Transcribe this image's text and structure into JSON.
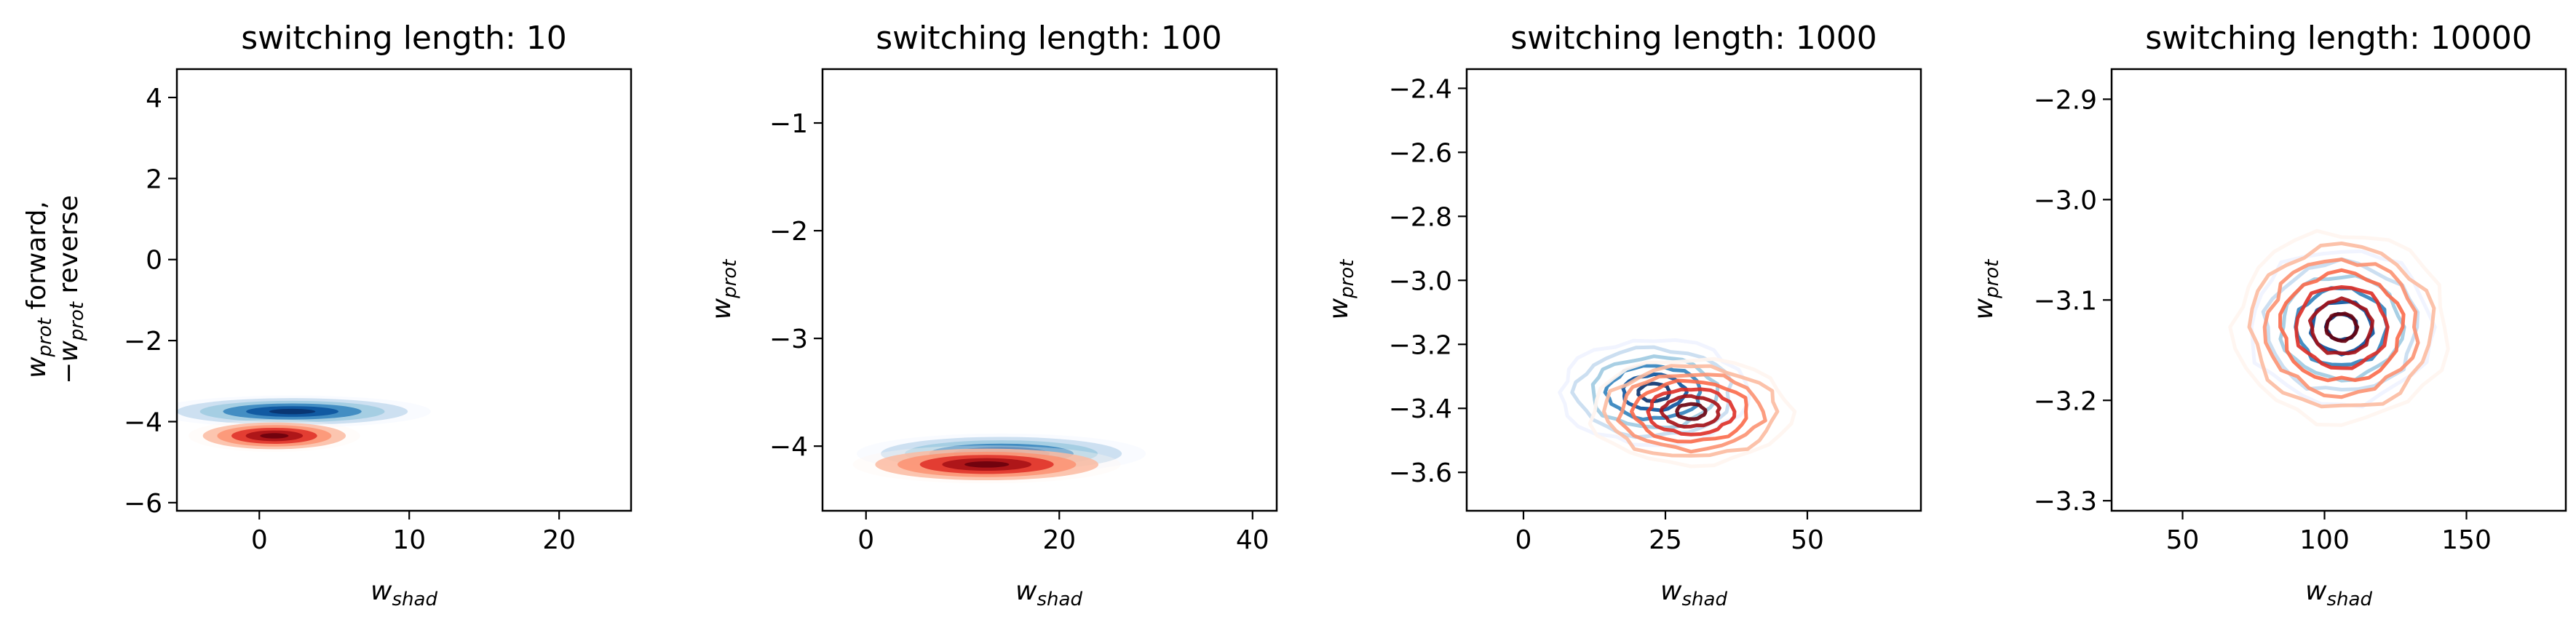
{
  "colors": {
    "forward_colormap": "Blues",
    "reverse_colormap": "Reds",
    "blues": [
      "#eff3ff",
      "#c6dbef",
      "#9ecae1",
      "#6baed6",
      "#3182bd",
      "#08519c",
      "#08306b"
    ],
    "reds": [
      "#fff5f0",
      "#fcbba1",
      "#fc9272",
      "#fb6a4a",
      "#de2d26",
      "#a50f15",
      "#67000d"
    ]
  },
  "chart_data": [
    {
      "type": "contour",
      "title": "switching length: 10",
      "xlabel": {
        "main": "w",
        "sub": "shad"
      },
      "ylabel": {
        "line1_main": "w",
        "line1_sub": "prot",
        "line1_text": " forward,",
        "line2_prefix": "−",
        "line2_main": "w",
        "line2_sub": "prot",
        "line2_text": " reverse"
      },
      "xlim": [
        -5.5,
        24.8
      ],
      "ylim": [
        -6.2,
        4.7
      ],
      "xticks": [
        0,
        10,
        20
      ],
      "xtick_labels": [
        "0",
        "10",
        "20"
      ],
      "yticks": [
        -6,
        -4,
        -2,
        0,
        2,
        4
      ],
      "ytick_labels": [
        "−6",
        "−4",
        "−2",
        "0",
        "2",
        "4"
      ],
      "filled": true,
      "series": [
        {
          "name": "forward",
          "colormap": "Blues",
          "center": [
            2.2,
            -3.75
          ],
          "spread": [
            4.2,
            0.18
          ],
          "levels": 6
        },
        {
          "name": "reverse",
          "colormap": "Reds",
          "center": [
            1.0,
            -4.35
          ],
          "spread": [
            2.6,
            0.18
          ],
          "levels": 6
        }
      ]
    },
    {
      "type": "contour",
      "title": "switching length: 100",
      "xlabel": {
        "main": "w",
        "sub": "shad"
      },
      "ylabel": {
        "line1_main": "w",
        "line1_sub": "prot"
      },
      "xlim": [
        -4.5,
        42.5
      ],
      "ylim": [
        -4.6,
        -0.5
      ],
      "xticks": [
        0,
        20,
        40
      ],
      "xtick_labels": [
        "0",
        "20",
        "40"
      ],
      "yticks": [
        -4,
        -3,
        -2,
        -1
      ],
      "ytick_labels": [
        "−4",
        "−3",
        "−2",
        "−1"
      ],
      "filled": true,
      "series": [
        {
          "name": "forward",
          "colormap": "Blues",
          "center": [
            14.0,
            -4.07
          ],
          "spread": [
            6.8,
            0.085
          ],
          "levels": 6
        },
        {
          "name": "reverse",
          "colormap": "Reds",
          "center": [
            12.5,
            -4.17
          ],
          "spread": [
            6.3,
            0.08
          ],
          "levels": 6
        }
      ]
    },
    {
      "type": "contour",
      "title": "switching length: 1000",
      "xlabel": {
        "main": "w",
        "sub": "shad"
      },
      "ylabel": {
        "line1_main": "w",
        "line1_sub": "prot"
      },
      "xlim": [
        -10,
        70
      ],
      "ylim": [
        -3.72,
        -2.34
      ],
      "xticks": [
        0,
        25,
        50
      ],
      "xtick_labels": [
        "0",
        "25",
        "50"
      ],
      "yticks": [
        -3.6,
        -3.4,
        -3.2,
        -3.0,
        -2.8,
        -2.6,
        -2.4
      ],
      "ytick_labels": [
        "−3.6",
        "−3.4",
        "−3.2",
        "−3.0",
        "−2.8",
        "−2.6",
        "−2.4"
      ],
      "filled": false,
      "series": [
        {
          "name": "forward",
          "colormap": "Blues",
          "center": [
            23.0,
            -3.35
          ],
          "spread": [
            7.5,
            0.075
          ],
          "levels": 6
        },
        {
          "name": "reverse",
          "colormap": "Reds",
          "center": [
            29.5,
            -3.41
          ],
          "spread": [
            8.0,
            0.075
          ],
          "levels": 7
        }
      ]
    },
    {
      "type": "contour",
      "title": "switching length: 10000",
      "xlabel": {
        "main": "w",
        "sub": "shad"
      },
      "ylabel": {
        "line1_main": "w",
        "line1_sub": "prot"
      },
      "xlim": [
        25,
        185
      ],
      "ylim": [
        -3.31,
        -2.87
      ],
      "xticks": [
        50,
        100,
        150
      ],
      "xtick_labels": [
        "50",
        "100",
        "150"
      ],
      "yticks": [
        -3.3,
        -3.2,
        -3.1,
        -3.0,
        -2.9
      ],
      "ytick_labels": [
        "−3.3",
        "−3.2",
        "−3.1",
        "−3.0",
        "−2.9"
      ],
      "filled": false,
      "series": [
        {
          "name": "forward",
          "colormap": "Blues",
          "center": [
            106,
            -3.127
          ],
          "spread": [
            14.5,
            0.035
          ],
          "levels": 6
        },
        {
          "name": "reverse",
          "colormap": "Reds",
          "center": [
            106,
            -3.127
          ],
          "spread": [
            17.0,
            0.043
          ],
          "levels": 7
        }
      ]
    }
  ]
}
